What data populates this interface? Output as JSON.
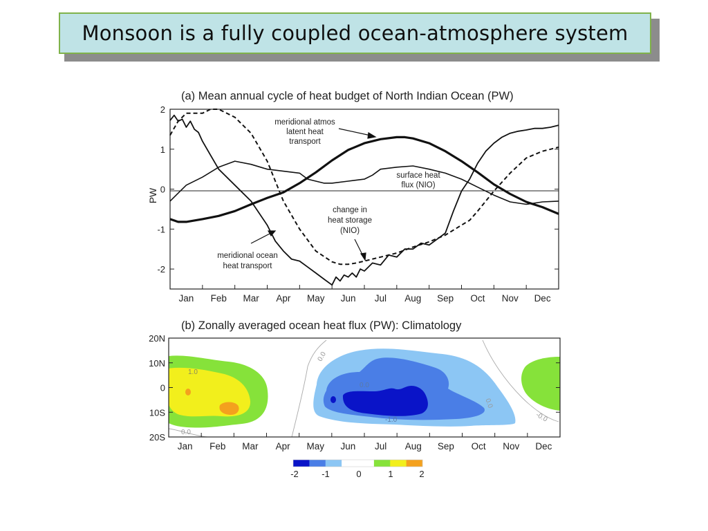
{
  "slide": {
    "title": "Monsoon is a fully coupled ocean-atmosphere system"
  },
  "chart_data": [
    {
      "type": "line",
      "title": "(a) Mean annual cycle of heat budget of North Indian Ocean (PW)",
      "xlabel": "",
      "ylabel": "PW",
      "ylim": [
        -2.5,
        2
      ],
      "xlim": [
        0,
        12
      ],
      "yticks": [
        "2",
        "1",
        "0",
        "-1",
        "-2"
      ],
      "categories": [
        "Jan",
        "Feb",
        "Mar",
        "Apr",
        "May",
        "Jun",
        "Jul",
        "Aug",
        "Sep",
        "Oct",
        "Nov",
        "Dec"
      ],
      "grid": false,
      "annotations": [
        {
          "lines": [
            "meridional atmos",
            "latent heat",
            "transport"
          ]
        },
        {
          "lines": [
            "surface heat",
            "flux (NIO)"
          ]
        },
        {
          "lines": [
            "change in",
            "heat storage",
            "(NIO)"
          ]
        },
        {
          "lines": [
            "meridional ocean",
            "heat transport"
          ]
        }
      ],
      "series": [
        {
          "name": "meridional atmos latent heat transport",
          "style": "thick",
          "x": [
            0.0,
            0.25,
            0.5,
            1.0,
            1.5,
            2.0,
            2.5,
            3.0,
            3.5,
            4.0,
            4.5,
            5.0,
            5.5,
            6.0,
            6.5,
            7.0,
            7.25,
            7.5,
            8.0,
            8.5,
            9.0,
            9.5,
            10.0,
            10.5,
            11.0,
            11.5,
            12.0
          ],
          "y": [
            -0.75,
            -0.82,
            -0.82,
            -0.75,
            -0.67,
            -0.55,
            -0.38,
            -0.22,
            -0.08,
            0.15,
            0.42,
            0.72,
            0.98,
            1.15,
            1.25,
            1.3,
            1.3,
            1.27,
            1.15,
            0.95,
            0.7,
            0.42,
            0.12,
            -0.12,
            -0.32,
            -0.45,
            -0.62
          ]
        },
        {
          "name": "surface heat flux (NIO)",
          "style": "thin",
          "x": [
            0.0,
            0.25,
            0.5,
            1.0,
            1.5,
            2.0,
            2.5,
            3.0,
            3.5,
            4.0,
            4.25,
            4.5,
            4.75,
            5.0,
            5.5,
            6.0,
            6.25,
            6.5,
            7.0,
            7.5,
            8.0,
            8.5,
            9.0,
            9.5,
            10.0,
            10.5,
            11.0,
            11.5,
            12.0
          ],
          "y": [
            -0.3,
            -0.1,
            0.1,
            0.3,
            0.55,
            0.7,
            0.62,
            0.5,
            0.45,
            0.4,
            0.25,
            0.2,
            0.15,
            0.15,
            0.2,
            0.25,
            0.35,
            0.5,
            0.55,
            0.58,
            0.5,
            0.4,
            0.25,
            0.05,
            -0.15,
            -0.32,
            -0.38,
            -0.32,
            -0.3
          ]
        },
        {
          "name": "change in heat storage (NIO)",
          "style": "dashed",
          "x": [
            0.0,
            0.25,
            0.5,
            1.0,
            1.25,
            1.5,
            2.0,
            2.5,
            3.0,
            3.5,
            4.0,
            4.5,
            5.0,
            5.25,
            5.5,
            5.75,
            6.0,
            6.5,
            7.0,
            7.5,
            8.0,
            8.5,
            9.0,
            9.25,
            9.5,
            10.0,
            10.5,
            11.0,
            11.5,
            12.0
          ],
          "y": [
            1.35,
            1.7,
            1.9,
            1.9,
            2.0,
            2.0,
            1.8,
            1.4,
            0.7,
            -0.3,
            -1.0,
            -1.55,
            -1.82,
            -1.88,
            -1.88,
            -1.85,
            -1.8,
            -1.7,
            -1.6,
            -1.45,
            -1.32,
            -1.15,
            -0.9,
            -0.78,
            -0.55,
            -0.05,
            0.4,
            0.78,
            0.95,
            1.05
          ]
        },
        {
          "name": "meridional ocean heat transport",
          "style": "thin-noisy",
          "x": [
            0.0,
            0.125,
            0.25,
            0.375,
            0.5,
            0.625,
            0.75,
            0.875,
            1.0,
            1.25,
            1.5,
            2.0,
            2.5,
            3.0,
            3.25,
            3.5,
            3.75,
            4.0,
            4.25,
            4.5,
            4.75,
            5.0,
            5.125,
            5.25,
            5.375,
            5.5,
            5.625,
            5.75,
            5.875,
            6.0,
            6.25,
            6.5,
            6.75,
            7.0,
            7.25,
            7.5,
            7.75,
            8.0,
            8.25,
            8.5,
            8.75,
            9.0,
            9.25,
            9.5,
            9.75,
            10.0,
            10.25,
            10.5,
            10.75,
            11.0,
            11.25,
            11.5,
            11.75,
            12.0
          ],
          "y": [
            1.72,
            1.85,
            1.7,
            1.75,
            1.55,
            1.7,
            1.5,
            1.42,
            1.2,
            0.85,
            0.5,
            0.1,
            -0.3,
            -0.9,
            -1.3,
            -1.55,
            -1.75,
            -1.8,
            -1.95,
            -2.1,
            -2.25,
            -2.4,
            -2.2,
            -2.3,
            -2.15,
            -2.2,
            -2.1,
            -2.2,
            -2.0,
            -2.05,
            -1.85,
            -1.9,
            -1.65,
            -1.7,
            -1.5,
            -1.5,
            -1.35,
            -1.4,
            -1.25,
            -1.1,
            -0.55,
            -0.05,
            0.25,
            0.65,
            0.95,
            1.15,
            1.3,
            1.4,
            1.45,
            1.48,
            1.52,
            1.52,
            1.55,
            1.6
          ]
        }
      ]
    },
    {
      "type": "heatmap",
      "title": "(b) Zonally averaged ocean heat flux (PW): Climatology",
      "xlabel": "",
      "ylabel": "",
      "categories": [
        "Jan",
        "Feb",
        "Mar",
        "Apr",
        "May",
        "Jun",
        "Jul",
        "Aug",
        "Sep",
        "Oct",
        "Nov",
        "Dec"
      ],
      "yticks": [
        "20N",
        "10N",
        "0",
        "10S",
        "20S"
      ],
      "ylim": [
        -20,
        20
      ],
      "contour_labels": [
        "1.0",
        "0.0",
        "0.0",
        "-1.0",
        "0.0",
        "0.0",
        "-0.0"
      ],
      "colorbar": {
        "labels": [
          "-2",
          "-1",
          "0",
          "1",
          "2"
        ],
        "colors": [
          "#0a14c8",
          "#4a7ee6",
          "#8cc6f4",
          "#ffffff",
          "#ffffff",
          "#86e23a",
          "#f2ef1c",
          "#f4a11e"
        ]
      },
      "regions": [
        {
          "level": "1",
          "color": "#86e23a",
          "months": "Jan-Mar"
        },
        {
          "level": "1.5",
          "color": "#f2ef1c",
          "months": "Jan-Feb"
        },
        {
          "level": "2",
          "color": "#f4a11e",
          "months": "Feb"
        },
        {
          "level": "-1",
          "color": "#8cc6f4",
          "months": "May-Sep"
        },
        {
          "level": "-1.5",
          "color": "#4a7ee6",
          "months": "Jun-Aug"
        },
        {
          "level": "-2",
          "color": "#0a14c8",
          "months": "Jun-Aug"
        },
        {
          "level": "1",
          "color": "#86e23a",
          "months": "Dec"
        }
      ]
    }
  ]
}
